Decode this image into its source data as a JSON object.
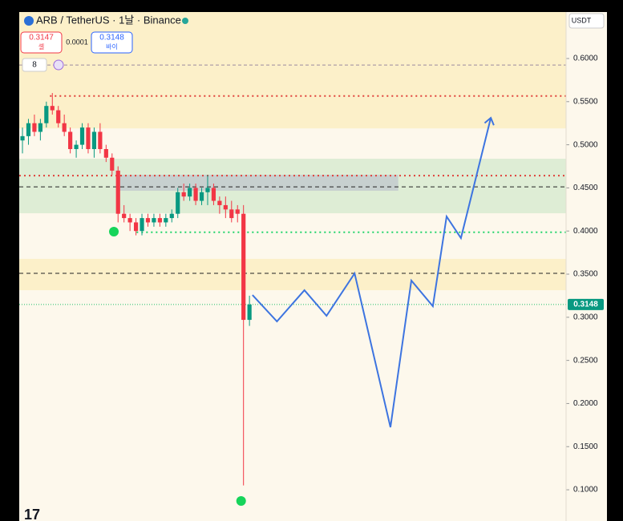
{
  "header": {
    "symbol": "ARB / TetherUS · 1날 · Binance",
    "sell_price": 0.3147,
    "sell_label": "셀",
    "spread": 0.0001,
    "buy_price": 0.3148,
    "buy_label": "바이",
    "indicator": "8",
    "currency": "USDT"
  },
  "chart_data": {
    "type": "candlestick",
    "up_color": "#089981",
    "down_color": "#f23645",
    "xlim": [
      -0.54,
      91.0
    ],
    "ylim": [
      0.0638,
      0.6539
    ],
    "yticks": [
      {
        "value": 0.1,
        "label": "0.1000"
      },
      {
        "value": 0.15,
        "label": "0.1500"
      },
      {
        "value": 0.2,
        "label": "0.2000"
      },
      {
        "value": 0.25,
        "label": "0.2500"
      },
      {
        "value": 0.3,
        "label": "0.3000"
      },
      {
        "value": 0.35,
        "label": "0.3500"
      },
      {
        "value": 0.4,
        "label": "0.4000"
      },
      {
        "value": 0.45,
        "label": "0.4500"
      },
      {
        "value": 0.5,
        "label": "0.5000"
      },
      {
        "value": 0.55,
        "label": "0.5500"
      },
      {
        "value": 0.6,
        "label": "0.6000"
      }
    ],
    "last_price": 0.3148,
    "open": [
      0.505,
      0.51,
      0.525,
      0.515,
      0.525,
      0.545,
      0.54,
      0.525,
      0.515,
      0.495,
      0.5,
      0.52,
      0.495,
      0.515,
      0.495,
      0.485,
      0.47,
      0.42,
      0.415,
      0.41,
      0.4,
      0.415,
      0.41,
      0.415,
      0.41,
      0.415,
      0.42,
      0.445,
      0.44,
      0.45,
      0.435,
      0.445,
      0.45,
      0.435,
      0.43,
      0.425,
      0.425,
      0.42,
      0.297
    ],
    "high": [
      0.52,
      0.53,
      0.535,
      0.53,
      0.55,
      0.56,
      0.545,
      0.535,
      0.52,
      0.505,
      0.525,
      0.525,
      0.52,
      0.525,
      0.5,
      0.49,
      0.475,
      0.43,
      0.42,
      0.415,
      0.42,
      0.42,
      0.42,
      0.42,
      0.42,
      0.425,
      0.45,
      0.455,
      0.455,
      0.455,
      0.45,
      0.465,
      0.455,
      0.44,
      0.44,
      0.435,
      0.43,
      0.43,
      0.325
    ],
    "low": [
      0.49,
      0.5,
      0.51,
      0.505,
      0.52,
      0.535,
      0.52,
      0.51,
      0.49,
      0.485,
      0.495,
      0.49,
      0.485,
      0.49,
      0.48,
      0.465,
      0.41,
      0.41,
      0.4,
      0.395,
      0.395,
      0.405,
      0.405,
      0.405,
      0.405,
      0.41,
      0.415,
      0.435,
      0.435,
      0.43,
      0.43,
      0.43,
      0.43,
      0.42,
      0.415,
      0.41,
      0.41,
      0.105,
      0.29
    ],
    "close": [
      0.51,
      0.525,
      0.515,
      0.525,
      0.545,
      0.54,
      0.525,
      0.515,
      0.495,
      0.5,
      0.52,
      0.495,
      0.515,
      0.495,
      0.485,
      0.47,
      0.42,
      0.415,
      0.41,
      0.4,
      0.415,
      0.41,
      0.415,
      0.41,
      0.415,
      0.42,
      0.445,
      0.44,
      0.45,
      0.435,
      0.445,
      0.45,
      0.435,
      0.43,
      0.425,
      0.415,
      0.42,
      0.297,
      0.3148
    ],
    "zones": [
      {
        "from": 0.519,
        "to": 0.6539,
        "color": "#fbeec0"
      },
      {
        "from": 0.4206,
        "to": 0.4838,
        "color": "#d6ead0"
      },
      {
        "from": 0.3314,
        "to": 0.3677,
        "color": "#fbeec0"
      }
    ],
    "box": {
      "x": [
        16.0,
        62.9
      ],
      "from": 0.4467,
      "to": 0.4652,
      "color": "#b8bccb"
    },
    "levels": [
      {
        "value": 0.5924,
        "color": "#9a8aa0",
        "dash": "4 3",
        "x": -0.54
      },
      {
        "value": 0.5565,
        "color": "#e0413a",
        "dash": "2 4",
        "x": 4.6
      },
      {
        "value": 0.4642,
        "color": "#e0413a",
        "dash": "2 4",
        "x": -0.54
      },
      {
        "value": 0.4512,
        "color": "#222222",
        "dash": "5 4",
        "x": -0.54
      },
      {
        "value": 0.3986,
        "color": "#1fd46a",
        "dash": "2 4",
        "x": 19.1
      },
      {
        "value": 0.3509,
        "color": "#222222",
        "dash": "5 4",
        "x": -0.54
      },
      {
        "value": 0.3148,
        "color": "#1fbf66",
        "dash": "1 2",
        "x": -0.54
      }
    ],
    "signals": {
      "x": [
        15.3,
        36.6
      ],
      "values": [
        0.3993,
        0.087
      ],
      "color": "#16d45a"
    },
    "projection": {
      "color": "#3d74e0",
      "x": [
        38.5,
        42.6,
        47.2,
        50.9,
        55.6,
        61.6,
        65.1,
        68.7,
        71.0,
        73.4,
        78.4
      ],
      "values": [
        0.3258,
        0.2952,
        0.3314,
        0.3017,
        0.3509,
        0.1725,
        0.3426,
        0.3128,
        0.4169,
        0.3918,
        0.5312
      ]
    }
  }
}
